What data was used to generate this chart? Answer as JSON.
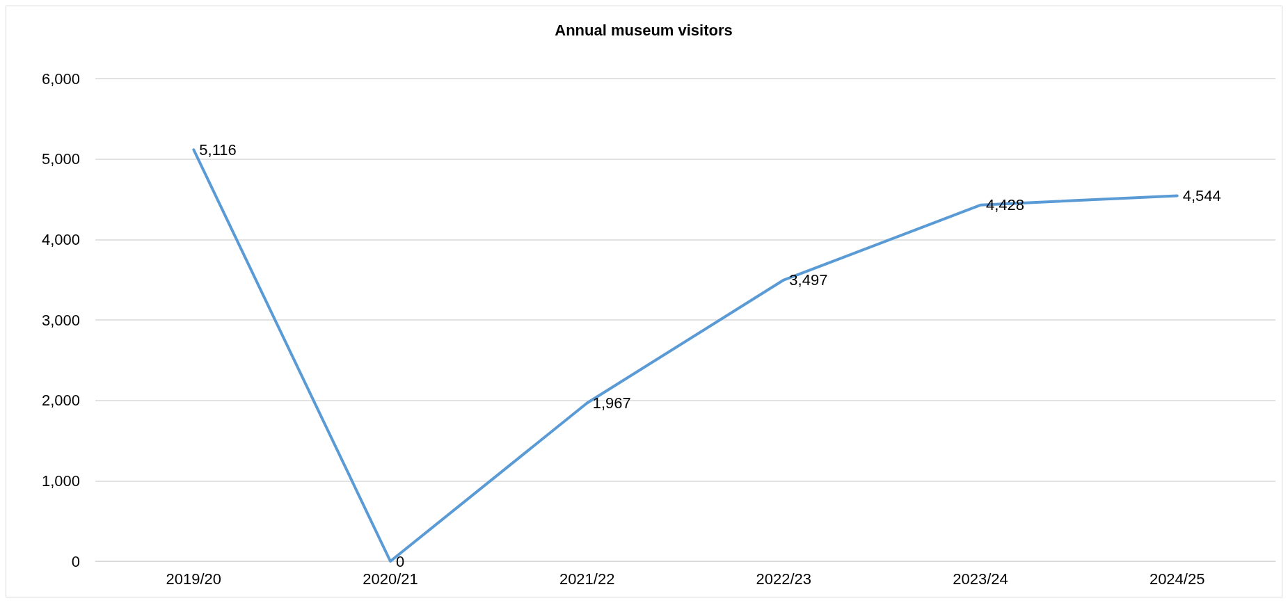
{
  "chart_data": {
    "type": "line",
    "title": "Annual museum visitors",
    "categories": [
      "2019/20",
      "2020/21",
      "2021/22",
      "2022/23",
      "2023/24",
      "2024/25"
    ],
    "series": [
      {
        "color": "#5b9bd5",
        "values": [
          5116,
          0,
          1967,
          3497,
          4428,
          4544
        ],
        "value_labels": [
          "5,116",
          "0",
          "1,967",
          "3,497",
          "4,428",
          "4,544"
        ]
      }
    ],
    "ylim": [
      0,
      6000
    ],
    "yticks": [
      0,
      {
        "value": 1000,
        "label": "1,000"
      },
      {
        "value": 2000,
        "label": "2,000"
      },
      {
        "value": 3000,
        "label": "3,000"
      },
      {
        "value": 4000,
        "label": "4,000"
      },
      {
        "value": 5000,
        "label": "5,000"
      },
      {
        "value": 6000,
        "label": "6,000"
      }
    ],
    "grid": "y",
    "marker": "none",
    "line_style": "solid"
  }
}
